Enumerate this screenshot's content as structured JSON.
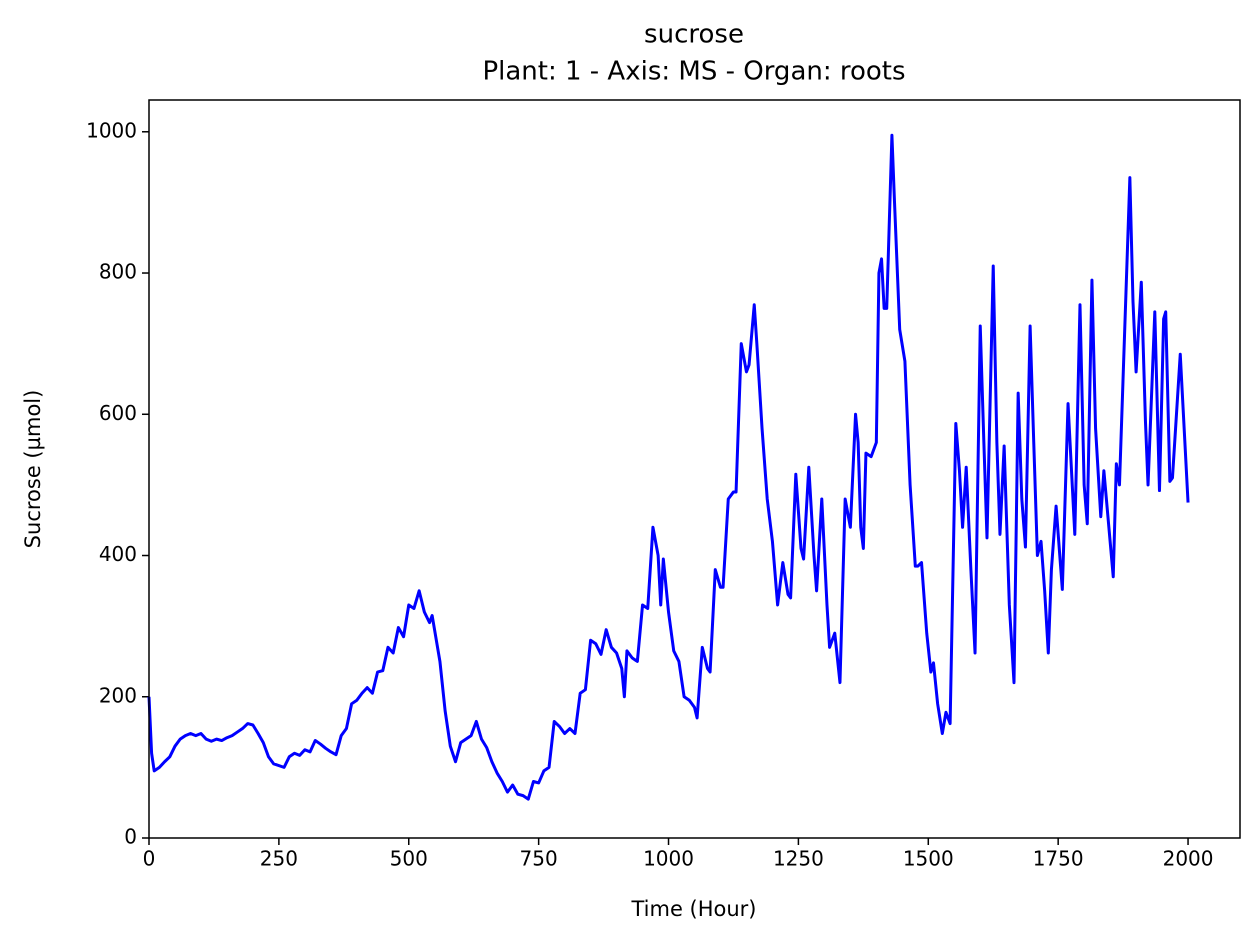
{
  "chart_data": {
    "type": "line",
    "title": "sucrose",
    "subtitle": "Plant: 1 - Axis: MS - Organ: roots",
    "x_label": "Time (Hour)",
    "y_label": "Sucrose (µmol)",
    "color": "#0000ff",
    "xlim": [
      0,
      2100
    ],
    "ylim": [
      0,
      1045
    ],
    "xticks": [
      0,
      250,
      500,
      750,
      1000,
      1250,
      1500,
      1750,
      2000
    ],
    "yticks": [
      0,
      200,
      400,
      600,
      800,
      1000
    ],
    "grid": false,
    "x": [
      0,
      5,
      10,
      20,
      30,
      40,
      50,
      60,
      70,
      80,
      90,
      100,
      110,
      120,
      130,
      140,
      150,
      160,
      170,
      180,
      190,
      200,
      210,
      220,
      230,
      240,
      260,
      270,
      280,
      290,
      300,
      310,
      320,
      330,
      340,
      350,
      360,
      370,
      380,
      390,
      400,
      410,
      420,
      430,
      440,
      450,
      460,
      470,
      480,
      490,
      500,
      510,
      520,
      530,
      540,
      545,
      560,
      570,
      580,
      590,
      600,
      610,
      620,
      630,
      640,
      650,
      660,
      670,
      680,
      690,
      700,
      710,
      720,
      730,
      740,
      750,
      760,
      770,
      780,
      790,
      800,
      810,
      820,
      830,
      840,
      850,
      860,
      870,
      880,
      890,
      900,
      910,
      915,
      920,
      930,
      940,
      950,
      960,
      970,
      980,
      985,
      990,
      1000,
      1010,
      1020,
      1030,
      1040,
      1050,
      1055,
      1065,
      1075,
      1080,
      1090,
      1100,
      1105,
      1115,
      1125,
      1130,
      1140,
      1150,
      1155,
      1165,
      1170,
      1180,
      1190,
      1200,
      1210,
      1220,
      1230,
      1235,
      1245,
      1255,
      1260,
      1270,
      1280,
      1285,
      1295,
      1305,
      1310,
      1320,
      1330,
      1340,
      1350,
      1360,
      1365,
      1370,
      1375,
      1380,
      1390,
      1400,
      1405,
      1410,
      1415,
      1420,
      1430,
      1435,
      1445,
      1455,
      1465,
      1475,
      1480,
      1487,
      1497,
      1505,
      1510,
      1518,
      1527,
      1534,
      1542,
      1553,
      1560,
      1566,
      1573,
      1582,
      1590,
      1600,
      1607,
      1613,
      1625,
      1632,
      1638,
      1646,
      1656,
      1665,
      1673,
      1680,
      1687,
      1696,
      1703,
      1710,
      1717,
      1724,
      1731,
      1737,
      1746,
      1758,
      1769,
      1782,
      1792,
      1800,
      1806,
      1815,
      1822,
      1832,
      1838,
      1856,
      1862,
      1868,
      1888,
      1894,
      1900,
      1910,
      1918,
      1923,
      1936,
      1945,
      1953,
      1957,
      1965,
      1970,
      1985,
      2000
    ],
    "values": [
      200,
      120,
      95,
      100,
      108,
      115,
      130,
      140,
      145,
      148,
      145,
      148,
      140,
      137,
      140,
      138,
      142,
      145,
      150,
      155,
      162,
      160,
      148,
      135,
      115,
      105,
      100,
      115,
      120,
      117,
      125,
      122,
      138,
      133,
      127,
      122,
      118,
      145,
      155,
      190,
      195,
      205,
      213,
      205,
      235,
      237,
      270,
      262,
      298,
      285,
      330,
      325,
      350,
      320,
      305,
      315,
      250,
      180,
      130,
      108,
      135,
      140,
      145,
      165,
      140,
      128,
      108,
      92,
      80,
      65,
      75,
      62,
      60,
      55,
      80,
      78,
      95,
      100,
      165,
      158,
      148,
      155,
      148,
      205,
      210,
      280,
      275,
      260,
      295,
      270,
      262,
      240,
      200,
      265,
      255,
      250,
      330,
      325,
      440,
      400,
      330,
      395,
      320,
      265,
      250,
      200,
      195,
      185,
      170,
      270,
      240,
      235,
      380,
      355,
      355,
      480,
      490,
      490,
      700,
      660,
      670,
      755,
      700,
      580,
      480,
      420,
      330,
      390,
      345,
      340,
      515,
      410,
      395,
      525,
      400,
      350,
      480,
      330,
      270,
      290,
      220,
      480,
      440,
      600,
      560,
      440,
      410,
      545,
      540,
      560,
      800,
      820,
      750,
      750,
      995,
      900,
      720,
      675,
      500,
      385,
      385,
      390,
      290,
      235,
      248,
      190,
      148,
      178,
      162,
      587,
      520,
      440,
      525,
      380,
      262,
      725,
      560,
      425,
      810,
      560,
      430,
      555,
      330,
      220,
      630,
      480,
      412,
      725,
      560,
      400,
      420,
      350,
      262,
      380,
      470,
      352,
      615,
      430,
      755,
      500,
      445,
      790,
      580,
      455,
      520,
      370,
      530,
      500,
      935,
      760,
      660,
      787,
      590,
      500,
      745,
      492,
      735,
      745,
      505,
      510,
      685,
      475
    ]
  }
}
